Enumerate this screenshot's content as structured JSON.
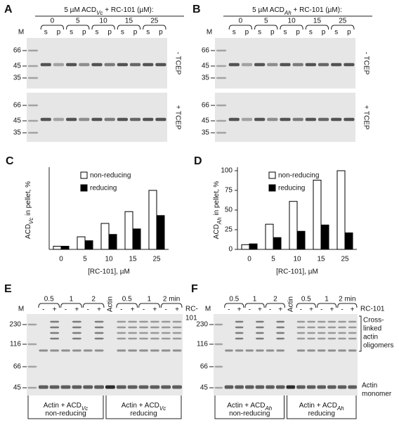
{
  "gels": {
    "A": {
      "label": "A",
      "title": [
        "5 µM ACD",
        "Vc",
        " + RC-101 (µM):"
      ],
      "marker": "M",
      "groups": [
        "0",
        "5",
        "10",
        "15",
        "25"
      ],
      "lanes": [
        "s",
        "p"
      ],
      "mw": [
        "66",
        "45",
        "35"
      ],
      "conditions": [
        "- TCEP",
        "+ TCEP"
      ]
    },
    "B": {
      "label": "B",
      "title": [
        "5 µM ACD",
        "Ah",
        " + RC-101 (µM):"
      ],
      "marker": "M",
      "groups": [
        "0",
        "5",
        "10",
        "15",
        "25"
      ],
      "lanes": [
        "s",
        "p"
      ],
      "mw": [
        "66",
        "45",
        "35"
      ],
      "conditions": [
        "- TCEP",
        "+ TCEP"
      ]
    },
    "E": {
      "label": "E",
      "marker": "M",
      "groups": [
        "0.5",
        "1",
        "2",
        "0.5",
        "1",
        "2 min"
      ],
      "lanes": [
        "-",
        "+"
      ],
      "actin_lane": "Actin",
      "treatment": [
        "RC-",
        "101"
      ],
      "mw": [
        "230",
        "116",
        "66",
        "45"
      ],
      "boxes": [
        [
          "Actin + ACD",
          "Vc",
          "non-reducing"
        ],
        [
          "Actin + ACD",
          "Vc",
          "reducing"
        ]
      ]
    },
    "F": {
      "label": "F",
      "marker": "M",
      "groups": [
        "0.5",
        "1",
        "2",
        "0.5",
        "1",
        "2 min"
      ],
      "lanes": [
        "-",
        "+"
      ],
      "actin_lane": "Actin",
      "treatment": [
        "RC-101"
      ],
      "mw": [
        "230",
        "116",
        "66",
        "45"
      ],
      "boxes": [
        [
          "Actin + ACD",
          "Ah",
          "non-reducing"
        ],
        [
          "Actin + ACD",
          "Ah",
          "reducing"
        ]
      ],
      "oligomers_label": [
        "Cross-",
        "linked",
        "actin",
        "oligomers"
      ],
      "monomer_label": [
        "Actin",
        "monomer"
      ]
    }
  },
  "chart_data": [
    {
      "type": "bar",
      "label": "C",
      "y_label": [
        "ACD",
        "Vc",
        " in pellet, %"
      ],
      "x_label": "[RC-101], µM",
      "categories": [
        "0",
        "5",
        "10",
        "15",
        "25"
      ],
      "series": [
        {
          "name": "non-reducing",
          "color": "#ffffff",
          "values": [
            4,
            16,
            33,
            48,
            75
          ]
        },
        {
          "name": "reducing",
          "color": "#000000",
          "values": [
            4,
            11,
            19,
            26,
            43
          ]
        }
      ],
      "ylim": [
        0,
        100
      ],
      "legend": "top-left"
    },
    {
      "type": "bar",
      "label": "D",
      "y_label": [
        "ACD",
        "Ah",
        " in pellet, %"
      ],
      "x_label": "[RC-101], µM",
      "categories": [
        "0",
        "5",
        "10",
        "15",
        "25"
      ],
      "series": [
        {
          "name": "non-reducing",
          "color": "#ffffff",
          "values": [
            6,
            32,
            61,
            88,
            100
          ]
        },
        {
          "name": "reducing",
          "color": "#000000",
          "values": [
            7,
            15,
            23,
            31,
            21
          ]
        }
      ],
      "ylim": [
        0,
        100
      ],
      "yticks": [
        0,
        25,
        50,
        75,
        100
      ],
      "legend": "top-left"
    }
  ]
}
